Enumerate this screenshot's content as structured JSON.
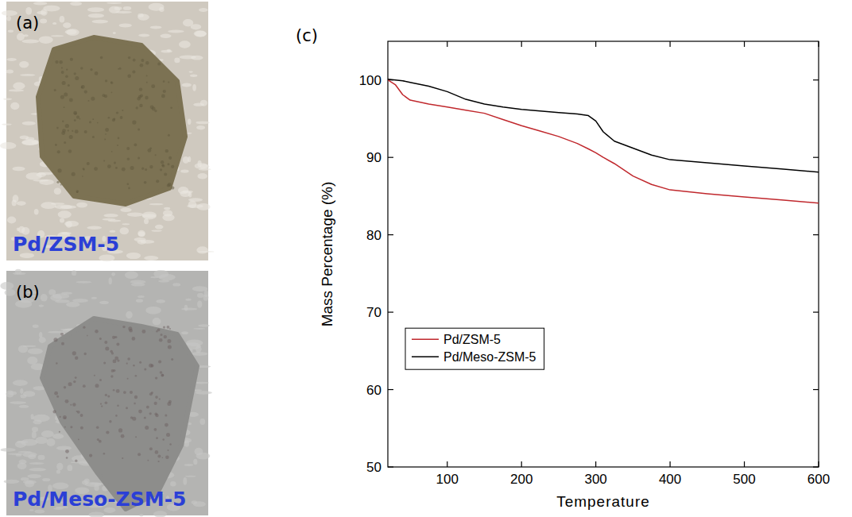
{
  "photos": [
    {
      "letter": "(a)",
      "label": "Pd/ZSM-5"
    },
    {
      "letter": "(b)",
      "label": "Pd/Meso-ZSM-5"
    }
  ],
  "chart_data": {
    "type": "line",
    "panel": "(c)",
    "x_label": "Temperature",
    "y_label": "Mass Percentage (%)",
    "x": [
      20,
      30,
      40,
      50,
      75,
      100,
      125,
      150,
      175,
      200,
      225,
      250,
      275,
      290,
      300,
      310,
      325,
      350,
      375,
      400,
      450,
      500,
      550,
      600
    ],
    "series": [
      {
        "name": "Pd/ZSM-5",
        "color": "#c0282d",
        "values": [
          100,
          99.4,
          98.1,
          97.4,
          96.9,
          96.5,
          96.1,
          95.7,
          94.9,
          94.1,
          93.4,
          92.7,
          91.8,
          91.1,
          90.6,
          90.0,
          89.2,
          87.6,
          86.5,
          85.8,
          85.3,
          84.9,
          84.5,
          84.1
        ]
      },
      {
        "name": "Pd/Meso-ZSM-5",
        "color": "#000000",
        "values": [
          100.1,
          100.0,
          99.9,
          99.7,
          99.2,
          98.5,
          97.5,
          96.9,
          96.5,
          96.2,
          96.0,
          95.8,
          95.6,
          95.4,
          94.7,
          93.3,
          92.1,
          91.2,
          90.3,
          89.7,
          89.3,
          88.9,
          88.5,
          88.1
        ]
      }
    ],
    "xlim": [
      20,
      600
    ],
    "xticks": [
      100,
      200,
      300,
      400,
      500,
      600
    ],
    "ylim": [
      50,
      105
    ],
    "yticks": [
      50,
      60,
      70,
      80,
      90,
      100
    ],
    "legend": "lower left",
    "grid": false
  }
}
